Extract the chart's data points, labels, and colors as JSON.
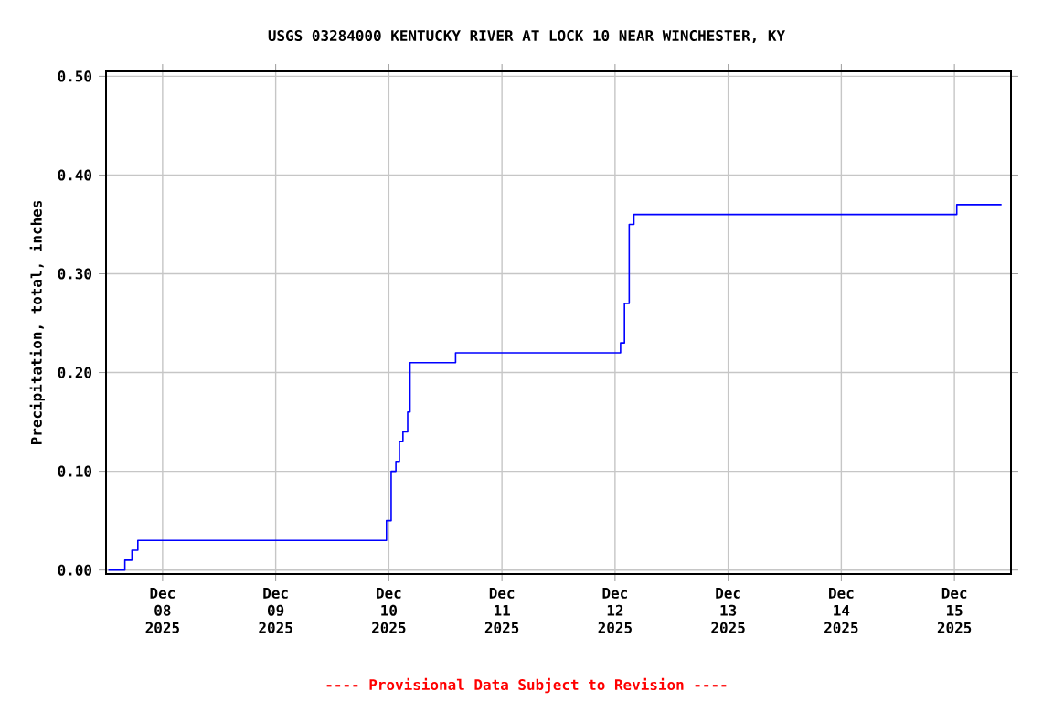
{
  "chart_data": {
    "type": "step",
    "title": "USGS 03284000 KENTUCKY RIVER AT LOCK 10 NEAR WINCHESTER, KY",
    "ylabel": "Precipitation, total, inches",
    "annotations": [
      "---- Provisional Data Subject to Revision ----"
    ],
    "x": [
      "2025-12-07T12:30",
      "2025-12-07T16:00",
      "2025-12-07T17:30",
      "2025-12-07T18:45",
      "2025-12-09T23:30",
      "2025-12-10T00:30",
      "2025-12-10T01:30",
      "2025-12-10T02:15",
      "2025-12-10T03:00",
      "2025-12-10T04:00",
      "2025-12-10T04:30",
      "2025-12-10T14:10",
      "2025-12-12T01:10",
      "2025-12-12T02:00",
      "2025-12-12T03:00",
      "2025-12-12T04:00",
      "2025-12-15T00:30",
      "2025-12-15T10:00"
    ],
    "series": [
      {
        "color": "#0000ff",
        "values": [
          0.0,
          0.01,
          0.02,
          0.03,
          0.05,
          0.1,
          0.11,
          0.13,
          0.14,
          0.16,
          0.21,
          0.22,
          0.23,
          0.27,
          0.35,
          0.36,
          0.37,
          0.37
        ]
      }
    ],
    "xlim": [
      "2025-12-07T12:00",
      "2025-12-15T12:00"
    ],
    "xticks": [
      {
        "value": "2025-12-08",
        "label": "Dec 08 2025"
      },
      {
        "value": "2025-12-09",
        "label": "Dec 09 2025"
      },
      {
        "value": "2025-12-10",
        "label": "Dec 10 2025"
      },
      {
        "value": "2025-12-11",
        "label": "Dec 11 2025"
      },
      {
        "value": "2025-12-12",
        "label": "Dec 12 2025"
      },
      {
        "value": "2025-12-13",
        "label": "Dec 13 2025"
      },
      {
        "value": "2025-12-14",
        "label": "Dec 14 2025"
      },
      {
        "value": "2025-12-15",
        "label": "Dec 15 2025"
      }
    ],
    "ylim": [
      -0.004,
      0.505
    ],
    "yticks": [
      {
        "value": 0,
        "label": "0.00"
      },
      {
        "value": 0.1,
        "label": "0.10"
      },
      {
        "value": 0.2,
        "label": "0.20"
      },
      {
        "value": 0.3,
        "label": "0.30"
      },
      {
        "value": 0.4,
        "label": "0.40"
      },
      {
        "value": 0.5,
        "label": "0.50"
      }
    ],
    "grid": true
  }
}
